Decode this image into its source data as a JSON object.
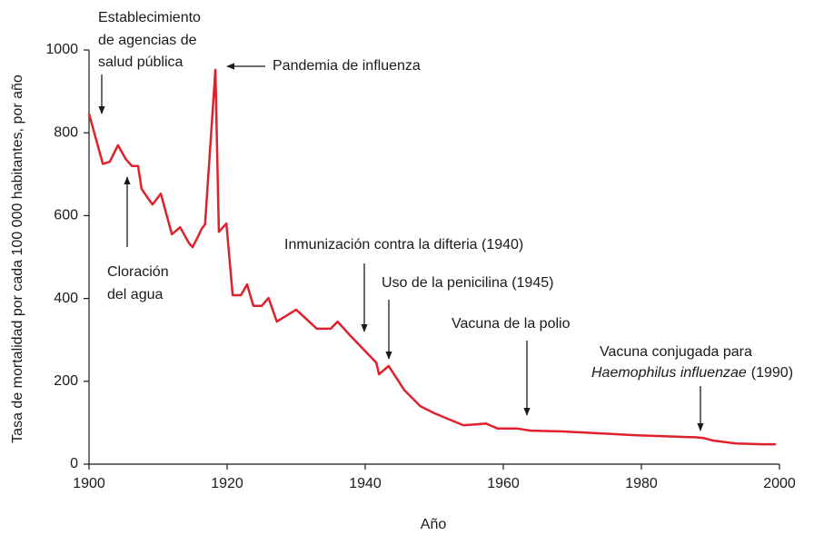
{
  "chart_data": {
    "type": "line",
    "xlabel": "Año",
    "ylabel": "Tasa de mortalidad por cada 100 000 habitantes, por año",
    "color": "#e0202a",
    "x": [
      1900,
      1902,
      1903,
      1904.2,
      1905.3,
      1906.2,
      1907.1,
      1907.6,
      1908.5,
      1909.2,
      1910.4,
      1912,
      1913.2,
      1914.5,
      1915,
      1915.8,
      1916.3,
      1916.8,
      1918.3,
      1918.8,
      1919.9,
      1920.8,
      1922,
      1922.9,
      1923.8,
      1925,
      1926,
      1927.2,
      1930,
      1933,
      1935,
      1936,
      1937.8,
      1941.6,
      1942,
      1943.4,
      1945.7,
      1948,
      1950,
      1952.6,
      1954.2,
      1956,
      1957.5,
      1958.2,
      1959.2,
      1962,
      1964,
      1968.7,
      1979,
      1987.8,
      1989,
      1990.4,
      1993.7,
      1997.6,
      1999.5
    ],
    "values": [
      846,
      725,
      730,
      770,
      737,
      720,
      720,
      665,
      643,
      627,
      653,
      555,
      572,
      533,
      524,
      550,
      568,
      579,
      952,
      561,
      581,
      408,
      408,
      434,
      382,
      382,
      401,
      344,
      373,
      327,
      327,
      344,
      311,
      245,
      217,
      237,
      178,
      140,
      123,
      105,
      94,
      96,
      98,
      93,
      86,
      86,
      81,
      79,
      70,
      65,
      63,
      57,
      50,
      48,
      48
    ],
    "xlim": [
      1900,
      2000
    ],
    "xticks": [
      1900,
      1920,
      1940,
      1960,
      1980,
      2000
    ],
    "ylim": [
      0,
      1000
    ],
    "yticks": [
      0,
      200,
      400,
      600,
      800,
      1000
    ],
    "annotations": [
      [
        "Establecimiento",
        "de agencias de",
        "salud pública"
      ],
      [
        "Pandemia de influenza"
      ],
      [
        "Cloración",
        "del agua"
      ],
      [
        "Inmunización contra la difteria (1940)"
      ],
      [
        "Uso de la penicilina (1945)"
      ],
      [
        "Vacuna de la polio"
      ],
      [
        "Vacuna conjugada para",
        [
          "Haemophilus influenzae",
          "(1990)"
        ]
      ]
    ]
  }
}
